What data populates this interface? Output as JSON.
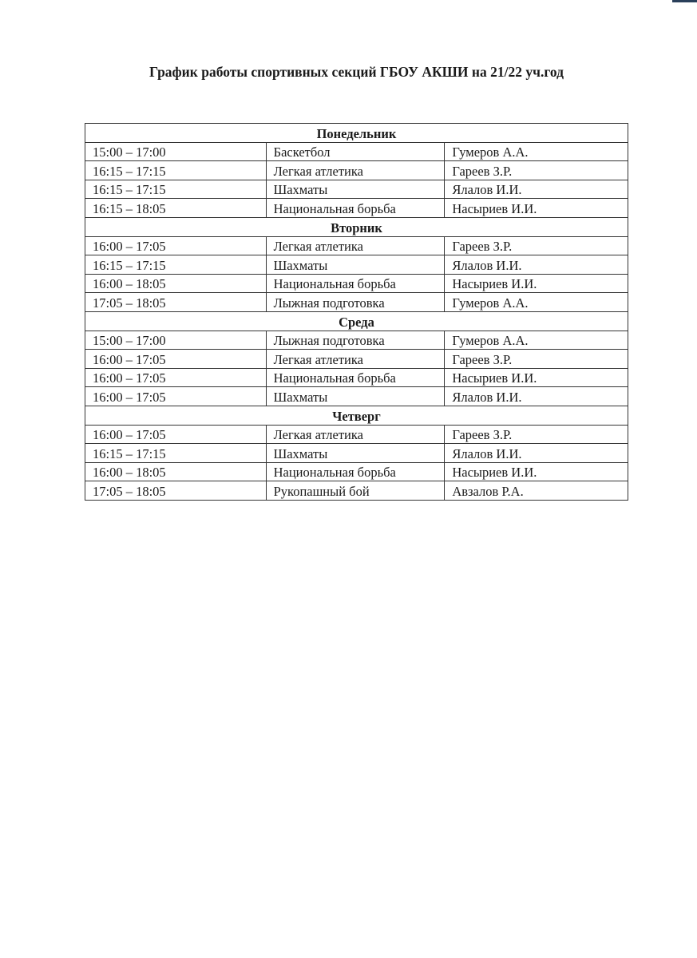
{
  "title": "График работы спортивных секций ГБОУ АКШИ на 21/22 уч.год",
  "days": [
    {
      "name": "Понедельник",
      "rows": [
        {
          "time": "15:00 – 17:00",
          "section": "Баскетбол",
          "coach": "Гумеров А.А."
        },
        {
          "time": "16:15 – 17:15",
          "section": "Легкая атлетика",
          "coach": "Гареев З.Р."
        },
        {
          "time": "16:15 – 17:15",
          "section": "Шахматы",
          "coach": "Ялалов И.И."
        },
        {
          "time": "16:15 – 18:05",
          "section": "Национальная борьба",
          "coach": "Насыриев И.И."
        }
      ]
    },
    {
      "name": "Вторник",
      "rows": [
        {
          "time": "16:00 – 17:05",
          "section": "Легкая атлетика",
          "coach": "Гареев З.Р."
        },
        {
          "time": "16:15 – 17:15",
          "section": "Шахматы",
          "coach": "Ялалов И.И."
        },
        {
          "time": "16:00 – 18:05",
          "section": "Национальная борьба",
          "coach": "Насыриев И.И."
        },
        {
          "time": "17:05 – 18:05",
          "section": "Лыжная подготовка",
          "coach": "Гумеров А.А."
        }
      ]
    },
    {
      "name": "Среда",
      "rows": [
        {
          "time": "15:00 – 17:00",
          "section": "Лыжная подготовка",
          "coach": "Гумеров А.А."
        },
        {
          "time": "16:00 – 17:05",
          "section": "Легкая атлетика",
          "coach": "Гареев З.Р."
        },
        {
          "time": "16:00 – 17:05",
          "section": "Национальная борьба",
          "coach": "Насыриев И.И."
        },
        {
          "time": "16:00 – 17:05",
          "section": "Шахматы",
          "coach": "Ялалов И.И."
        }
      ]
    },
    {
      "name": "Четверг",
      "rows": [
        {
          "time": "16:00 – 17:05",
          "section": "Легкая атлетика",
          "coach": "Гареев З.Р."
        },
        {
          "time": "16:15 – 17:15",
          "section": "Шахматы",
          "coach": "Ялалов И.И."
        },
        {
          "time": "16:00 – 18:05",
          "section": "Национальная борьба",
          "coach": "Насыриев И.И."
        },
        {
          "time": "17:05 – 18:05",
          "section": "Рукопашный бой",
          "coach": "Авзалов Р.А."
        }
      ]
    }
  ]
}
